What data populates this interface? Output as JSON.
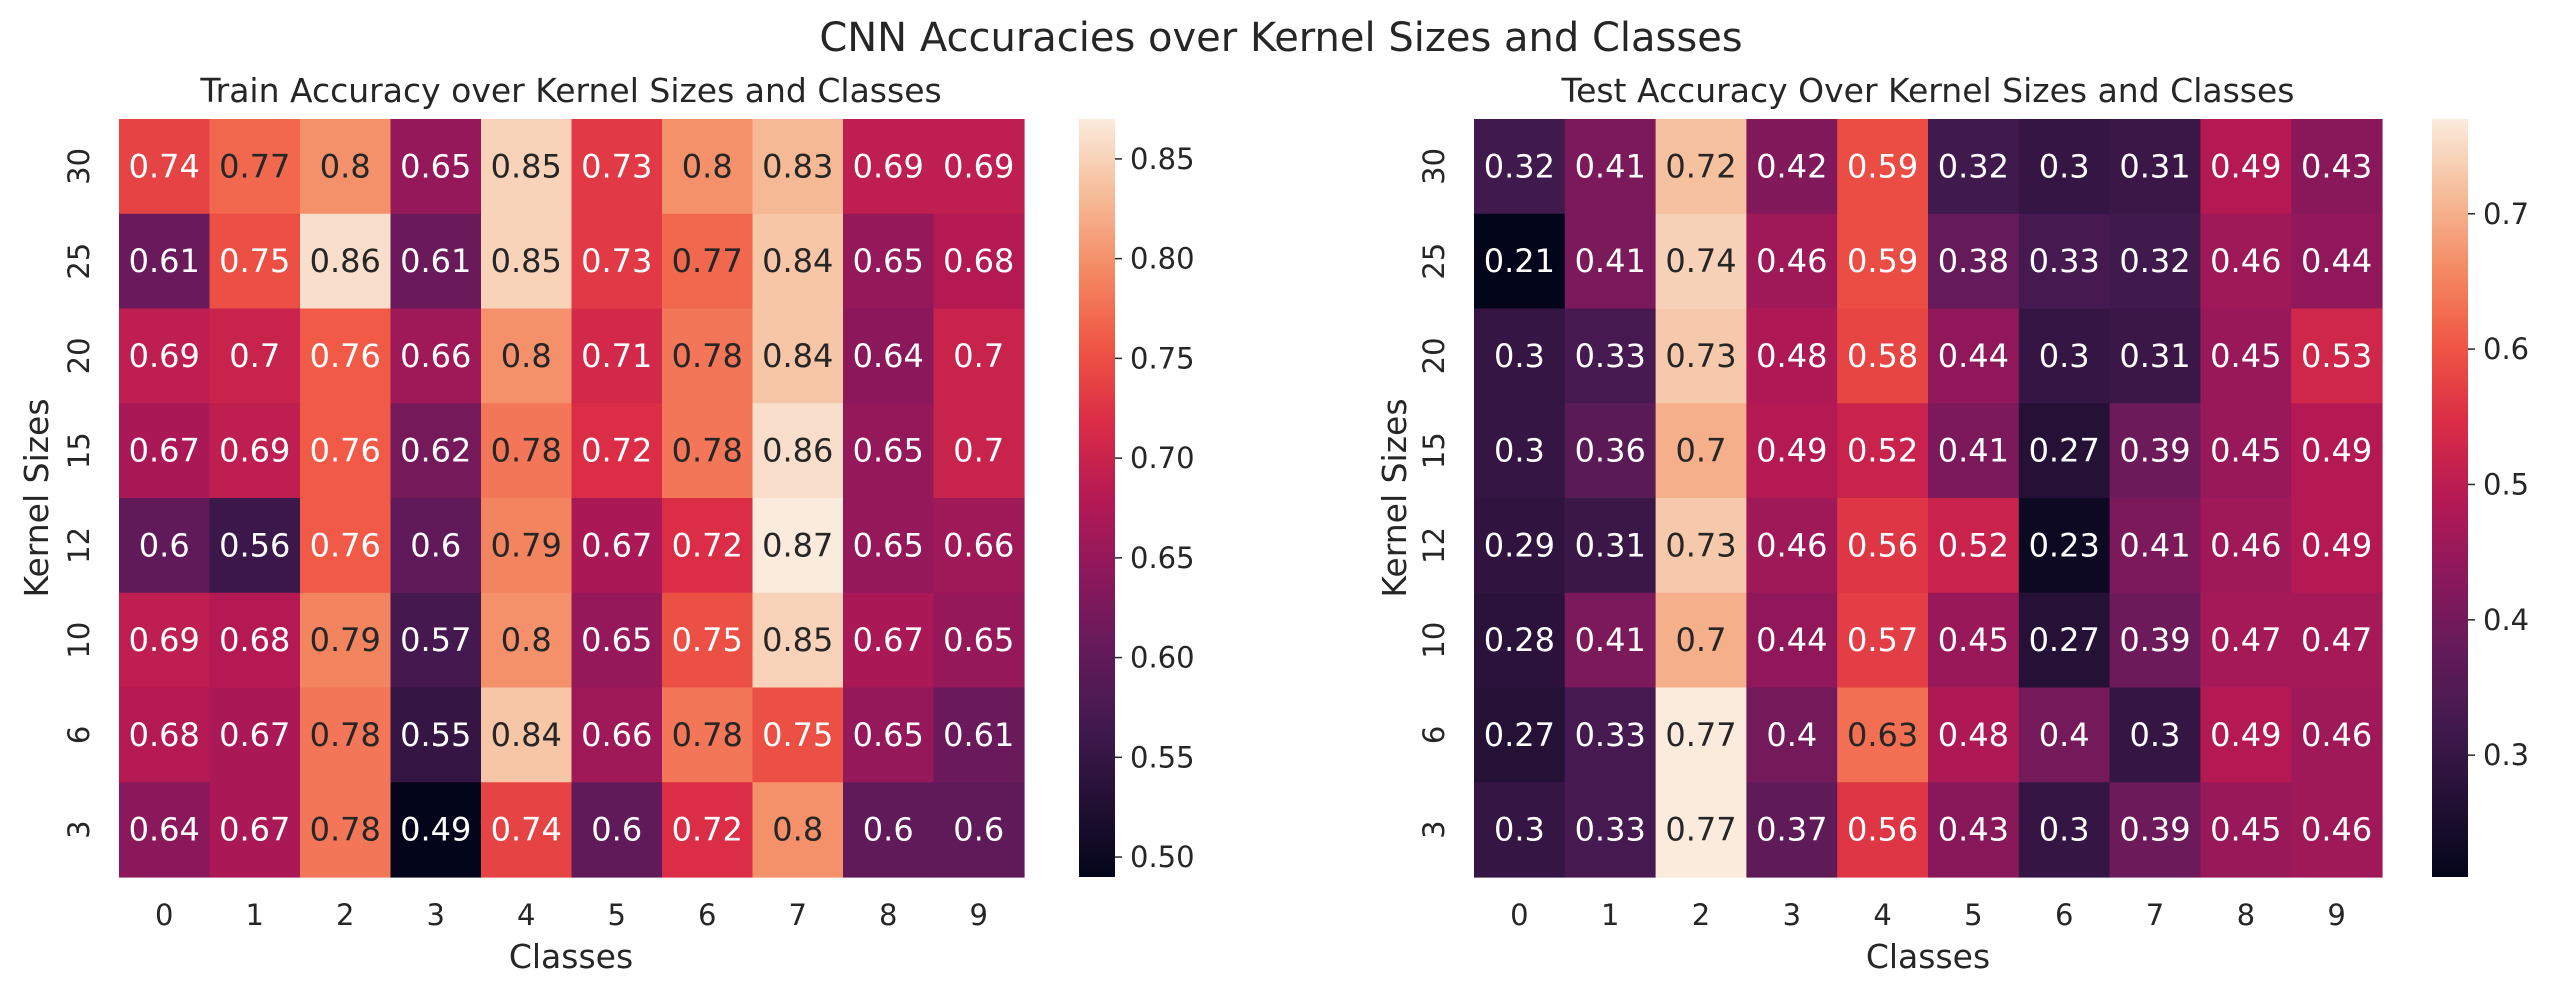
{
  "suptitle": "CNN Accuracies over Kernel Sizes and Classes",
  "chart_data": [
    {
      "type": "heatmap",
      "title": "Train Accuracy over Kernel Sizes and Classes",
      "xlabel": "Classes",
      "ylabel": "Kernel Sizes",
      "x_categories": [
        "0",
        "1",
        "2",
        "3",
        "4",
        "5",
        "6",
        "7",
        "8",
        "9"
      ],
      "y_categories": [
        "30",
        "25",
        "20",
        "15",
        "12",
        "10",
        "6",
        "3"
      ],
      "values": [
        [
          0.74,
          0.77,
          0.8,
          0.65,
          0.85,
          0.73,
          0.8,
          0.83,
          0.69,
          0.69
        ],
        [
          0.61,
          0.75,
          0.86,
          0.61,
          0.85,
          0.73,
          0.77,
          0.84,
          0.65,
          0.68
        ],
        [
          0.69,
          0.7,
          0.76,
          0.66,
          0.8,
          0.71,
          0.78,
          0.84,
          0.64,
          0.7
        ],
        [
          0.67,
          0.69,
          0.76,
          0.62,
          0.78,
          0.72,
          0.78,
          0.86,
          0.65,
          0.7
        ],
        [
          0.6,
          0.56,
          0.76,
          0.6,
          0.79,
          0.67,
          0.72,
          0.87,
          0.65,
          0.66
        ],
        [
          0.69,
          0.68,
          0.79,
          0.57,
          0.8,
          0.65,
          0.75,
          0.85,
          0.67,
          0.65
        ],
        [
          0.68,
          0.67,
          0.78,
          0.55,
          0.84,
          0.66,
          0.78,
          0.75,
          0.65,
          0.61
        ],
        [
          0.64,
          0.67,
          0.78,
          0.49,
          0.74,
          0.6,
          0.72,
          0.8,
          0.6,
          0.6
        ]
      ],
      "colorbar": {
        "range": [
          0.49,
          0.87
        ],
        "ticks": [
          "0.50",
          "0.55",
          "0.60",
          "0.65",
          "0.70",
          "0.75",
          "0.80",
          "0.85"
        ]
      },
      "colormap": "rocket"
    },
    {
      "type": "heatmap",
      "title": "Test Accuracy Over Kernel Sizes and Classes",
      "xlabel": "Classes",
      "ylabel": "Kernel Sizes",
      "x_categories": [
        "0",
        "1",
        "2",
        "3",
        "4",
        "5",
        "6",
        "7",
        "8",
        "9"
      ],
      "y_categories": [
        "30",
        "25",
        "20",
        "15",
        "12",
        "10",
        "6",
        "3"
      ],
      "values": [
        [
          0.32,
          0.41,
          0.72,
          0.42,
          0.59,
          0.32,
          0.3,
          0.31,
          0.49,
          0.43
        ],
        [
          0.21,
          0.41,
          0.74,
          0.46,
          0.59,
          0.38,
          0.33,
          0.32,
          0.46,
          0.44
        ],
        [
          0.3,
          0.33,
          0.73,
          0.48,
          0.58,
          0.44,
          0.3,
          0.31,
          0.45,
          0.53
        ],
        [
          0.3,
          0.36,
          0.7,
          0.49,
          0.52,
          0.41,
          0.27,
          0.39,
          0.45,
          0.49
        ],
        [
          0.29,
          0.31,
          0.73,
          0.46,
          0.56,
          0.52,
          0.23,
          0.41,
          0.46,
          0.49
        ],
        [
          0.28,
          0.41,
          0.7,
          0.44,
          0.57,
          0.45,
          0.27,
          0.39,
          0.47,
          0.47
        ],
        [
          0.27,
          0.33,
          0.77,
          0.4,
          0.63,
          0.48,
          0.4,
          0.3,
          0.49,
          0.46
        ],
        [
          0.3,
          0.33,
          0.77,
          0.37,
          0.56,
          0.43,
          0.3,
          0.39,
          0.45,
          0.46
        ]
      ],
      "colorbar": {
        "range": [
          0.21,
          0.77
        ],
        "ticks": [
          "0.3",
          "0.4",
          "0.5",
          "0.6",
          "0.7"
        ]
      },
      "colormap": "rocket"
    }
  ]
}
